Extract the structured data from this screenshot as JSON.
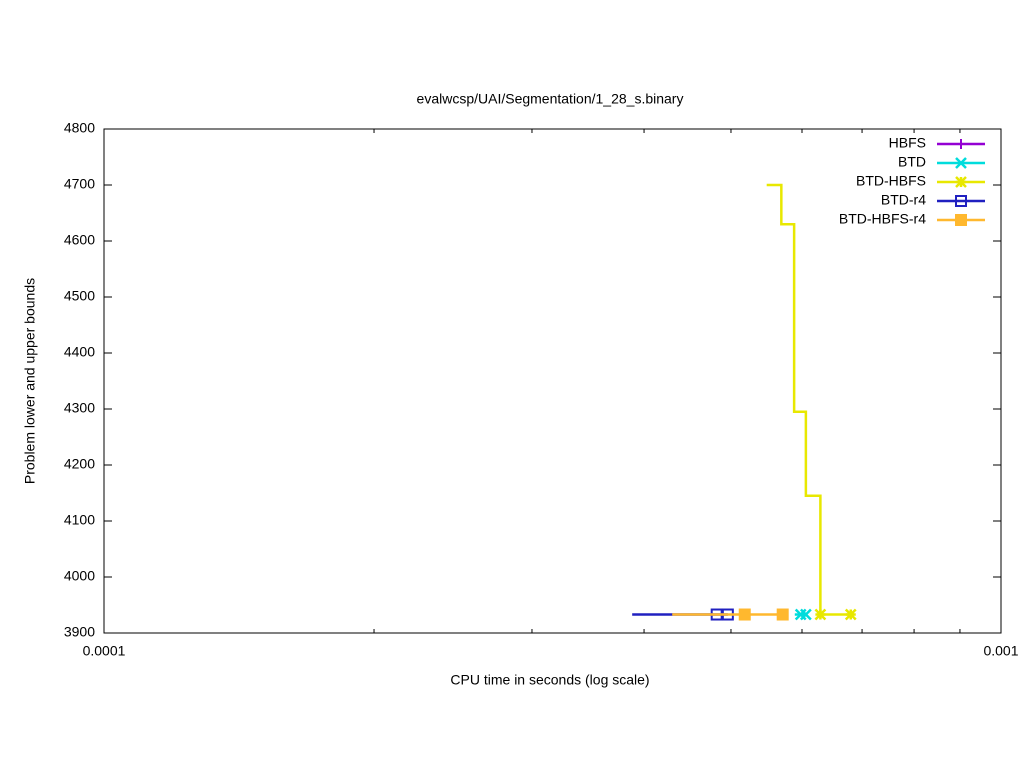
{
  "chart_data": {
    "type": "line",
    "title": "evalwcsp/UAI/Segmentation/1_28_s.binary",
    "x_label": "CPU time in seconds (log scale)",
    "y_label": "Problem lower and upper bounds",
    "xlog": true,
    "xlim": [
      0.0001,
      0.001
    ],
    "xticks": [
      0.0001,
      0.001
    ],
    "ylim": [
      3900,
      4800
    ],
    "yticks": [
      3900,
      4000,
      4100,
      4200,
      4300,
      4400,
      4500,
      4600,
      4700,
      4800
    ],
    "legend": "top-right",
    "steps": true,
    "series": [
      {
        "name": "HBFS",
        "color": "#9400d3",
        "point": "plus",
        "x": [],
        "values": [],
        "markers": {
          "x": [],
          "values": []
        }
      },
      {
        "name": "BTD",
        "color": "#00dcdc",
        "point": "cross",
        "x": [
          0.000589,
          0.000606
        ],
        "values": [
          3933,
          3933
        ],
        "markers": {
          "x": [
            0.000598,
            0.000606
          ],
          "values": [
            3933,
            3933
          ]
        }
      },
      {
        "name": "BTD-HBFS",
        "color": "#e8e800",
        "point": "star",
        "x": [
          0.000548,
          0.000569,
          0.000588,
          0.000606,
          0.000629,
          0.00068
        ],
        "values": [
          4700,
          4630,
          4295,
          4145,
          3933,
          3933
        ],
        "markers": {
          "x": [
            0.000629,
            0.00068
          ],
          "values": [
            3933,
            3933
          ]
        }
      },
      {
        "name": "BTD-r4",
        "color": "#2020c0",
        "point": "open-square",
        "x": [
          0.000388,
          0.000496
        ],
        "values": [
          3933,
          3933
        ],
        "markers": {
          "x": [
            0.000482,
            0.000496
          ],
          "values": [
            3933,
            3933
          ]
        }
      },
      {
        "name": "BTD-HBFS-r4",
        "color": "#ffb82e",
        "point": "filled-square",
        "x": [
          0.00043,
          0.000571
        ],
        "values": [
          3933,
          3933
        ],
        "markers": {
          "x": [
            0.000518,
            0.000571
          ],
          "values": [
            3933,
            3933
          ]
        }
      }
    ]
  }
}
